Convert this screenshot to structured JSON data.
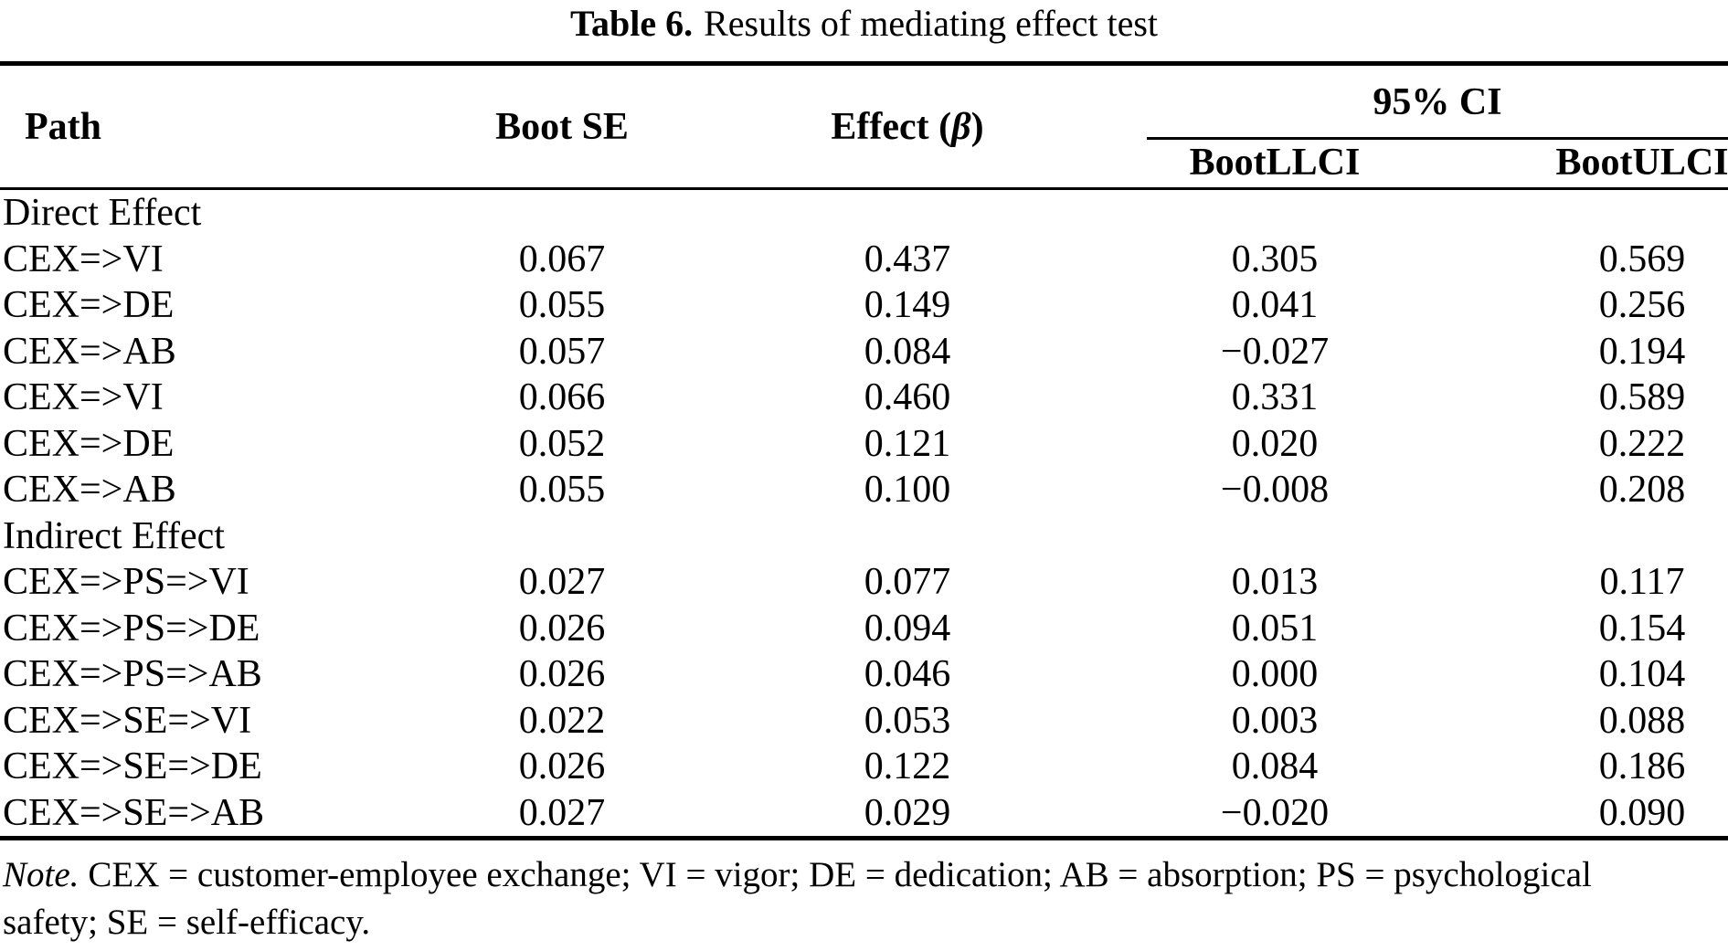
{
  "colors": {
    "text": "#000000",
    "background": "#ffffff"
  },
  "title": {
    "label": "Table 6.",
    "text": "Results of mediating effect test"
  },
  "table": {
    "headers": {
      "path": "Path",
      "boot_se": "Boot SE",
      "effect_prefix": "Effect (",
      "effect_symbol": "β",
      "effect_suffix": ")",
      "ci_group": "95% CI",
      "boot_llci": "BootLLCI",
      "boot_ulci": "BootULCI"
    },
    "rows": [
      {
        "path": "Direct Effect",
        "boot_se": "",
        "effect": "",
        "llci": "",
        "ulci": ""
      },
      {
        "path": "CEX=>VI",
        "boot_se": "0.067",
        "effect": "0.437",
        "llci": "0.305",
        "ulci": "0.569"
      },
      {
        "path": "CEX=>DE",
        "boot_se": "0.055",
        "effect": "0.149",
        "llci": "0.041",
        "ulci": "0.256"
      },
      {
        "path": "CEX=>AB",
        "boot_se": "0.057",
        "effect": "0.084",
        "llci": "−0.027",
        "ulci": "0.194"
      },
      {
        "path": "CEX=>VI",
        "boot_se": "0.066",
        "effect": "0.460",
        "llci": "0.331",
        "ulci": "0.589"
      },
      {
        "path": "CEX=>DE",
        "boot_se": "0.052",
        "effect": "0.121",
        "llci": "0.020",
        "ulci": "0.222"
      },
      {
        "path": "CEX=>AB",
        "boot_se": "0.055",
        "effect": "0.100",
        "llci": "−0.008",
        "ulci": "0.208"
      },
      {
        "path": "Indirect Effect",
        "boot_se": "",
        "effect": "",
        "llci": "",
        "ulci": ""
      },
      {
        "path": "CEX=>PS=>VI",
        "boot_se": "0.027",
        "effect": "0.077",
        "llci": "0.013",
        "ulci": "0.117"
      },
      {
        "path": "CEX=>PS=>DE",
        "boot_se": "0.026",
        "effect": "0.094",
        "llci": "0.051",
        "ulci": "0.154"
      },
      {
        "path": "CEX=>PS=>AB",
        "boot_se": "0.026",
        "effect": "0.046",
        "llci": "0.000",
        "ulci": "0.104"
      },
      {
        "path": "CEX=>SE=>VI",
        "boot_se": "0.022",
        "effect": "0.053",
        "llci": "0.003",
        "ulci": "0.088"
      },
      {
        "path": "CEX=>SE=>DE",
        "boot_se": "0.026",
        "effect": "0.122",
        "llci": "0.084",
        "ulci": "0.186"
      },
      {
        "path": "CEX=>SE=>AB",
        "boot_se": "0.027",
        "effect": "0.029",
        "llci": "−0.020",
        "ulci": "0.090"
      }
    ]
  },
  "note": {
    "label": "Note.",
    "line1": "CEX = customer-employee exchange; VI = vigor; DE = dedication; AB = absorption; PS = psychological",
    "line2": "safety; SE = self-efficacy."
  }
}
